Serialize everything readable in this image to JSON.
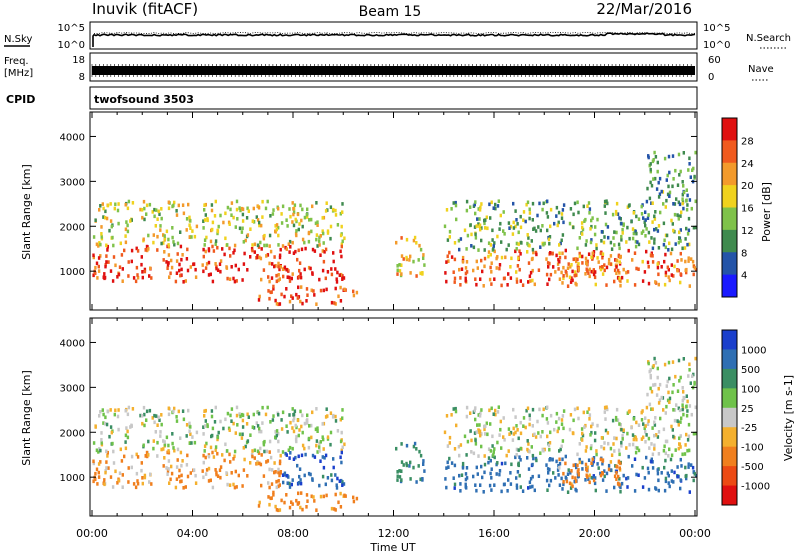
{
  "header": {
    "station": "Inuvik (fitACF)",
    "beam": "Beam 15",
    "date": "22/Mar/2016"
  },
  "noise_panel": {
    "left_label": "N.Sky",
    "right_label": "N.Search",
    "left_ticks": [
      "10^5",
      "10^0"
    ],
    "right_ticks": [
      "10^5",
      "10^0"
    ]
  },
  "freq_panel": {
    "left_label_1": "Freq.",
    "left_label_2": "[MHz]",
    "right_label": "Nave",
    "left_ticks": [
      "18",
      "8"
    ],
    "right_ticks": [
      "60",
      "0"
    ]
  },
  "cpid_panel": {
    "left_label": "CPID",
    "program": "twofsound 3503"
  },
  "axes": {
    "ylabel": "Slant Range [km]",
    "yticks": [
      "4000",
      "3000",
      "2000",
      "1000"
    ],
    "xticks": [
      "00:00",
      "04:00",
      "08:00",
      "12:00",
      "16:00",
      "20:00",
      "00:00"
    ],
    "xlabel": "Time UT"
  },
  "power_scale": {
    "label": "Power [dB]",
    "ticks": [
      "28",
      "24",
      "20",
      "16",
      "12",
      "8",
      "4"
    ],
    "colors": [
      "#1a1aff",
      "#2454a8",
      "#3f8a4e",
      "#7fc24a",
      "#f0d21e",
      "#f39a2b",
      "#f05a1e",
      "#e01010"
    ]
  },
  "velocity_scale": {
    "label": "Velocity [m s-1]",
    "ticks": [
      "1000",
      "500",
      "100",
      "25",
      "-25",
      "-100",
      "-500",
      "-1000"
    ],
    "colors": [
      "#1a3fcc",
      "#2f6fb3",
      "#3a8e63",
      "#6fc24a",
      "#c8c8c8",
      "#f4b02e",
      "#f07f1e",
      "#ec4a14",
      "#e01010"
    ]
  },
  "chart_data": {
    "type": "heatmap",
    "x_range_hours": [
      0,
      24
    ],
    "y_range_km": [
      180,
      4500
    ],
    "panels": [
      "Power [dB]",
      "Velocity [m s-1]"
    ],
    "power_cbar_range_db": [
      0,
      30
    ],
    "velocity_cbar_range_ms": [
      -1000,
      1000
    ],
    "echo_bands": [
      {
        "t_start": 0.0,
        "t_end": 7.5,
        "r_min": 800,
        "r_max": 1600,
        "power": 26,
        "velocity": -80
      },
      {
        "t_start": 0.0,
        "t_end": 10.0,
        "r_min": 1600,
        "r_max": 2600,
        "power": 16,
        "velocity": 15
      },
      {
        "t_start": 7.5,
        "t_end": 10.0,
        "r_min": 800,
        "r_max": 1600,
        "power": 27,
        "velocity": 600
      },
      {
        "t_start": 6.5,
        "t_end": 10.5,
        "r_min": 300,
        "r_max": 700,
        "power": 25,
        "velocity": -120
      },
      {
        "t_start": 12.0,
        "t_end": 13.2,
        "r_min": 900,
        "r_max": 1800,
        "power": 18,
        "velocity": 300
      },
      {
        "t_start": 14.0,
        "t_end": 24.0,
        "r_min": 700,
        "r_max": 1500,
        "power": 24,
        "velocity": 500
      },
      {
        "t_start": 14.0,
        "t_end": 24.0,
        "r_min": 1500,
        "r_max": 2600,
        "power": 12,
        "velocity": 10
      },
      {
        "t_start": 18.5,
        "t_end": 21.0,
        "r_min": 800,
        "r_max": 1500,
        "power": 22,
        "velocity": -150
      },
      {
        "t_start": 22.0,
        "t_end": 24.0,
        "r_min": 2500,
        "r_max": 3700,
        "power": 10,
        "velocity": 20
      }
    ]
  }
}
